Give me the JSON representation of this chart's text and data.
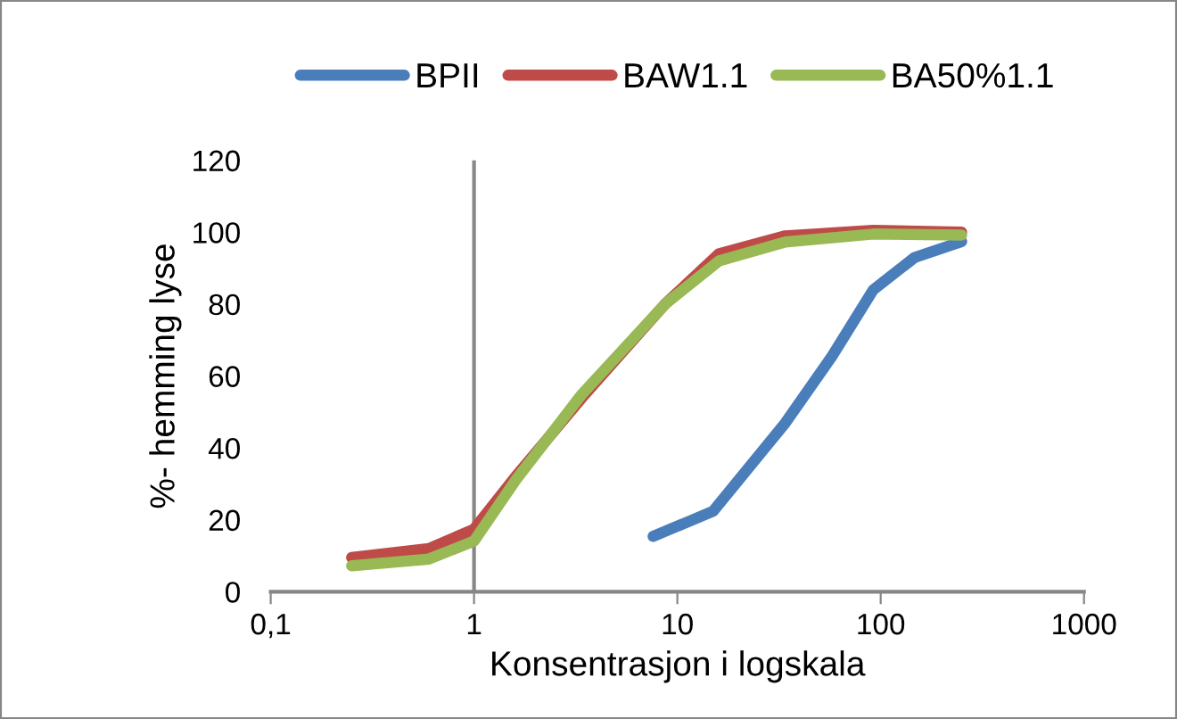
{
  "chart_data": {
    "type": "line",
    "xlabel": "Konsentrasjon i logskala",
    "ylabel": "%- hemming lyse",
    "log": "x",
    "xlim": [
      0.1,
      1000
    ],
    "xticks": [
      {
        "value": 0.1,
        "label": "0,1"
      },
      1,
      10,
      100,
      1000
    ],
    "ylim": [
      0,
      120
    ],
    "yticks": [
      0,
      20,
      40,
      60,
      80,
      100,
      120
    ],
    "grid": false,
    "legend": "top",
    "marker": "none",
    "line_style": "solid",
    "ref_lines": [
      {
        "axis": "x",
        "value": 1,
        "color": "#868686"
      }
    ],
    "series": [
      {
        "name": "BPII",
        "color": "#4a7ebb",
        "x": [
          7.6,
          15,
          34,
          57.6,
          92,
          147,
          250
        ],
        "values": [
          15.4,
          22.4,
          47,
          65.5,
          84,
          93,
          97.4
        ]
      },
      {
        "name": "BAW1.1",
        "color": "#be4b48",
        "x": [
          0.25,
          0.6,
          1,
          1.6,
          3.4,
          8.7,
          16,
          34,
          92,
          250
        ],
        "values": [
          9.5,
          12,
          17.4,
          32,
          54,
          80,
          94,
          99,
          100.5,
          100
        ]
      },
      {
        "name": "BA50%1.1",
        "color": "#98b954",
        "x": [
          0.25,
          0.6,
          1,
          1.6,
          3.4,
          8.7,
          16,
          34,
          92,
          250
        ],
        "values": [
          7.2,
          9.1,
          14.1,
          31,
          55,
          80,
          92,
          97.3,
          99.5,
          99.2
        ]
      }
    ]
  }
}
